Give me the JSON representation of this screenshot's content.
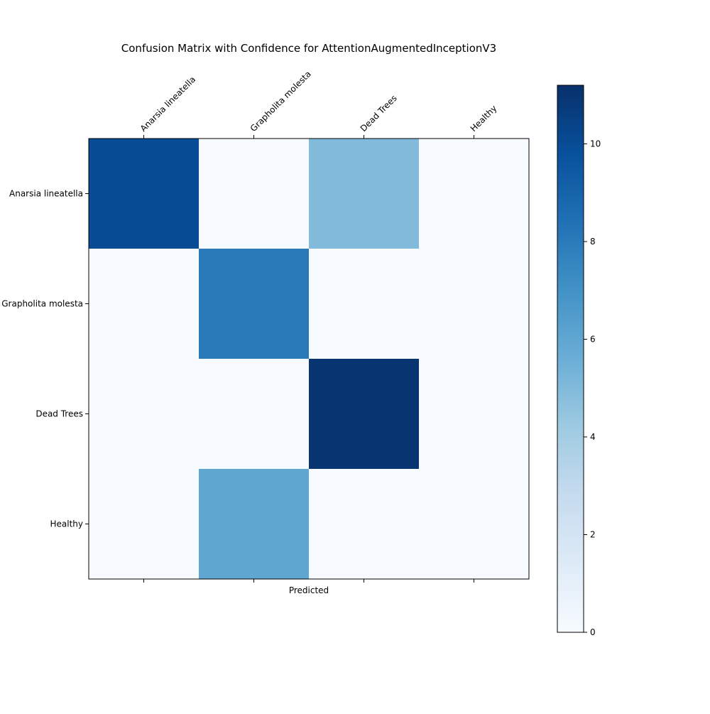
{
  "chart_data": {
    "type": "heatmap",
    "title": "Confusion Matrix with Confidence for AttentionAugmentedInceptionV3",
    "xlabel": "Predicted",
    "ylabel": "",
    "x_categories": [
      "Anarsia lineatella",
      "Grapholita molesta",
      "Dead Trees",
      "Healthy"
    ],
    "y_categories": [
      "Anarsia lineatella",
      "Grapholita molesta",
      "Dead Trees",
      "Healthy"
    ],
    "values": [
      [
        10,
        0,
        5,
        0
      ],
      [
        0,
        8,
        0,
        0
      ],
      [
        0,
        0,
        11,
        0
      ],
      [
        0,
        6,
        0,
        0
      ]
    ],
    "colorbar": {
      "min": 0,
      "max": 11.2,
      "ticks": [
        0,
        2,
        4,
        6,
        8,
        10
      ],
      "colormap": "Blues"
    }
  }
}
